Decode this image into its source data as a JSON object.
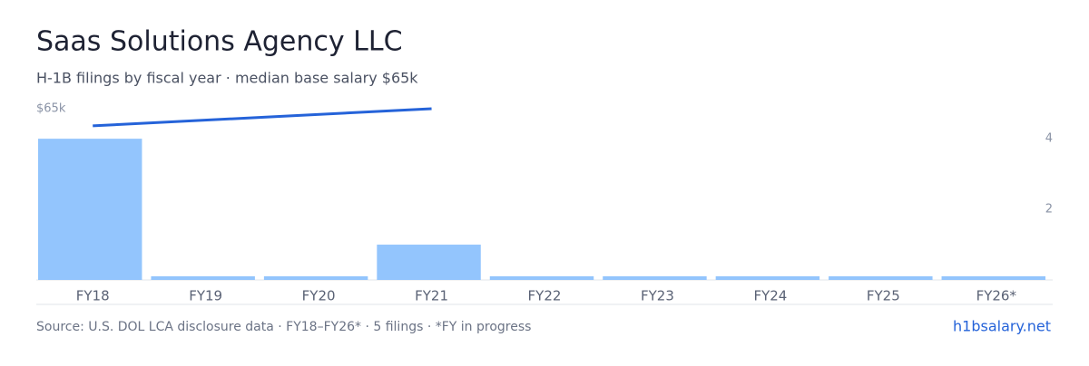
{
  "chart_data": {
    "type": "bar",
    "title": "Saas Solutions Agency LLC",
    "subtitle": "H-1B filings by fiscal year · median base salary $65k",
    "categories": [
      "FY18",
      "FY19",
      "FY20",
      "FY21",
      "FY22",
      "FY23",
      "FY24",
      "FY25",
      "FY26*"
    ],
    "series": [
      {
        "name": "H-1B filings",
        "type": "bar",
        "axis": "y2",
        "color": "#93c5fd",
        "values": [
          4,
          0,
          0,
          1,
          0,
          0,
          0,
          0,
          0
        ]
      },
      {
        "name": "Median base salary",
        "type": "line",
        "color": "#2563d9",
        "values": [
          58500,
          null,
          null,
          65000,
          null,
          null,
          null,
          null,
          null
        ]
      }
    ],
    "ylim": [
      0,
      65000
    ],
    "yticks": [
      {
        "value": 65000,
        "label": "$65k"
      }
    ],
    "y2lim": [
      0,
      4.85
    ],
    "y2ticks": [
      2,
      4
    ],
    "source": "Source: U.S. DOL LCA disclosure data · FY18–FY26* · 5 filings · *FY in progress",
    "brand": "h1bsalary.net"
  }
}
